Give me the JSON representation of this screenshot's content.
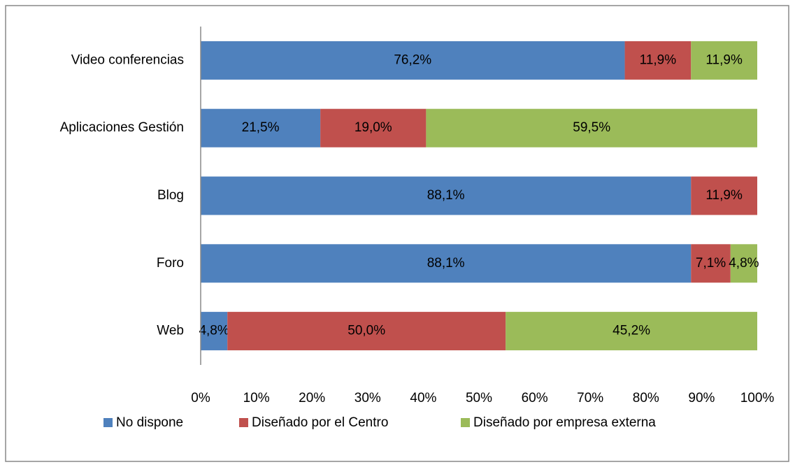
{
  "chart_data": {
    "type": "stacked-bar-horizontal",
    "categories": [
      "Video conferencias",
      "Aplicaciones Gestión",
      "Blog",
      "Foro",
      "Web"
    ],
    "series": [
      {
        "name": "No dispone",
        "color": "#4f81bd",
        "values": [
          76.2,
          21.5,
          88.1,
          88.1,
          4.8
        ],
        "value_labels": [
          "76,2%",
          "21,5%",
          "88,1%",
          "88,1%",
          "4,8%"
        ]
      },
      {
        "name": "Diseñado por el Centro",
        "color": "#c0504d",
        "values": [
          11.9,
          19.0,
          11.9,
          7.1,
          50.0
        ],
        "value_labels": [
          "11,9%",
          "19,0%",
          "11,9%",
          "7,1%",
          "50,0%"
        ]
      },
      {
        "name": "Diseñado por empresa externa",
        "color": "#9bbb59",
        "values": [
          11.9,
          59.5,
          0,
          4.8,
          45.2
        ],
        "value_labels": [
          "11,9%",
          "59,5%",
          null,
          "4,8%",
          "45,2%"
        ]
      }
    ],
    "xlim": [
      0,
      100
    ],
    "xticks": [
      {
        "value": 0,
        "label": "0%"
      },
      {
        "value": 10,
        "label": "10%"
      },
      {
        "value": 20,
        "label": "20%"
      },
      {
        "value": 30,
        "label": "30%"
      },
      {
        "value": 40,
        "label": "40%"
      },
      {
        "value": 50,
        "label": "50%"
      },
      {
        "value": 60,
        "label": "60%"
      },
      {
        "value": 70,
        "label": "70%"
      },
      {
        "value": 80,
        "label": "80%"
      },
      {
        "value": 90,
        "label": "90%"
      },
      {
        "value": 100,
        "label": "100%"
      }
    ],
    "grid": false,
    "legend": "bottom"
  }
}
